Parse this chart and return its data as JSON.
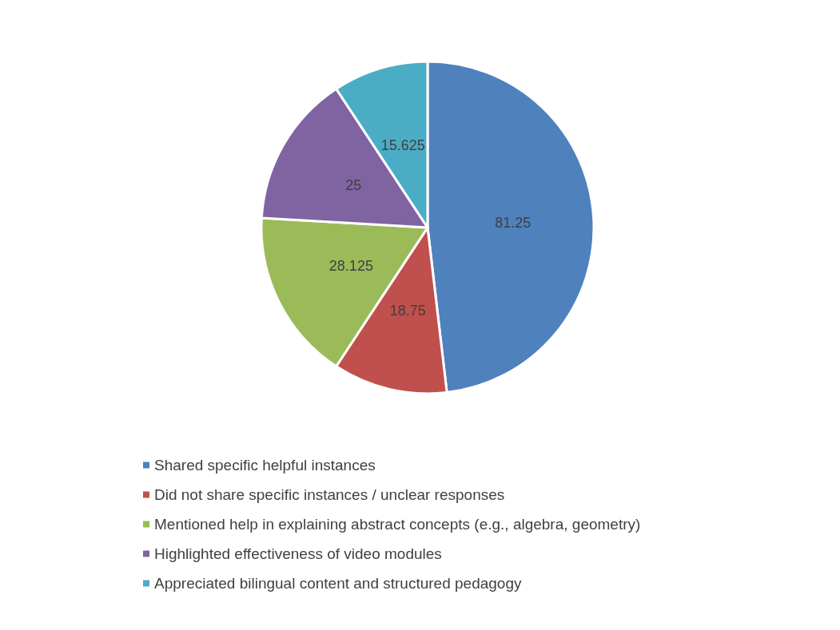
{
  "chart_data": {
    "type": "pie",
    "categories": [
      "Shared specific helpful instances",
      "Did not share specific instances / unclear responses",
      "Mentioned help in explaining abstract concepts (e.g., algebra, geometry)",
      "Highlighted effectiveness of video modules",
      "Appreciated bilingual content and structured pedagogy"
    ],
    "values": [
      81.25,
      18.75,
      28.125,
      25,
      15.625
    ],
    "colors": [
      "#4f81bd",
      "#c0504d",
      "#9bbb59",
      "#8064a2",
      "#4bacc6"
    ],
    "data_labels": true,
    "legend": "bottom"
  }
}
